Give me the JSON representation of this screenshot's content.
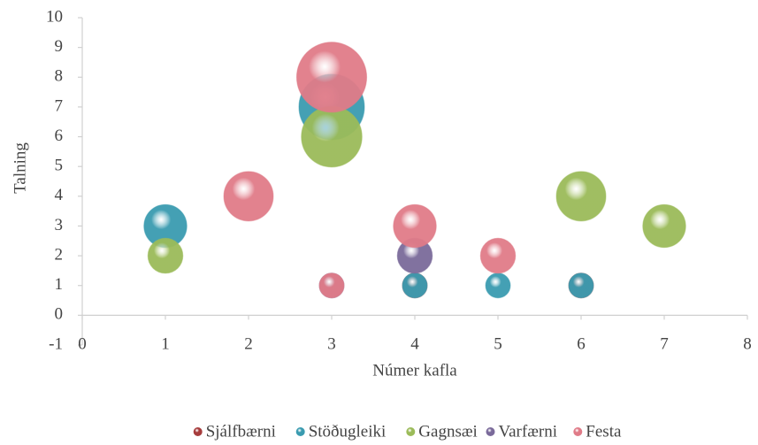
{
  "chart_data": {
    "type": "bubble",
    "x_label": "Númer kafla",
    "y_label": "Talning",
    "xlim": [
      0,
      8
    ],
    "xticks": [
      0,
      1,
      2,
      3,
      4,
      5,
      6,
      7,
      8
    ],
    "ylim": [
      -1,
      10
    ],
    "yticks": [
      -1,
      0,
      1,
      2,
      3,
      4,
      5,
      6,
      7,
      8,
      9,
      10
    ],
    "legend": "bottom",
    "series": [
      {
        "name": "Sjálfbærni",
        "color": "#a63c3c",
        "x": [
          4,
          6
        ],
        "values": [
          1,
          1
        ],
        "sizes": [
          1,
          1
        ]
      },
      {
        "name": "Stöðugleiki",
        "color": "#3a9bb0",
        "x": [
          1,
          3,
          4,
          5,
          6
        ],
        "values": [
          3,
          7,
          1,
          1,
          1
        ],
        "sizes": [
          3,
          7,
          1,
          1,
          1
        ]
      },
      {
        "name": "Gagnsæi",
        "color": "#9bbb59",
        "x": [
          1,
          3,
          6,
          7
        ],
        "values": [
          2,
          6,
          4,
          3
        ],
        "sizes": [
          2,
          6,
          4,
          3
        ]
      },
      {
        "name": "Varfærni",
        "color": "#7a6a9a",
        "x": [
          3,
          4
        ],
        "values": [
          1,
          2
        ],
        "sizes": [
          1,
          2
        ]
      },
      {
        "name": "Festa",
        "color": "#e07b88",
        "x": [
          2,
          3,
          4,
          5,
          3
        ],
        "values": [
          4,
          8,
          3,
          2,
          1
        ],
        "sizes": [
          4,
          8,
          3,
          2,
          1
        ]
      }
    ]
  }
}
